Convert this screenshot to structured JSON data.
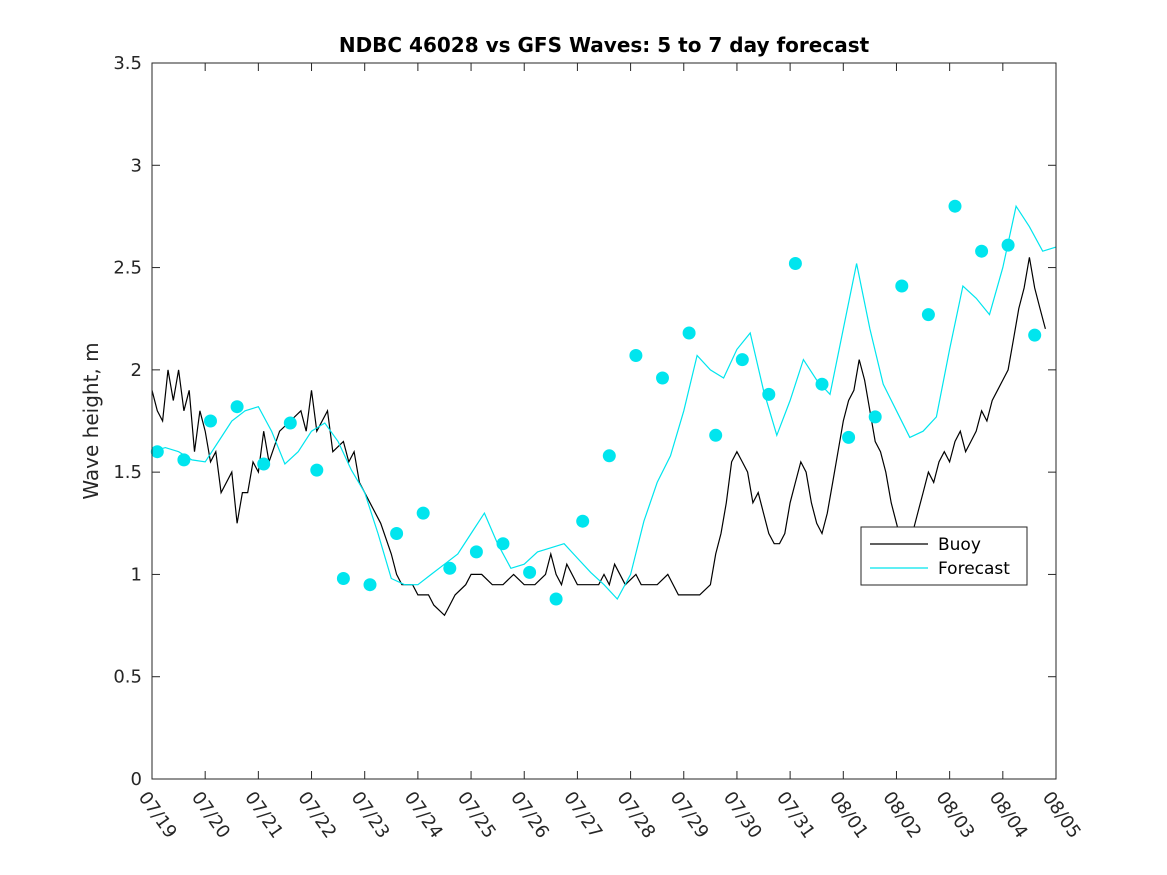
{
  "chart_data": {
    "type": "line",
    "title": "NDBC 46028 vs GFS Waves: 5 to 7 day forecast",
    "xlabel": "",
    "ylabel": "Wave height, m",
    "x_tick_labels": [
      "07/19",
      "07/20",
      "07/21",
      "07/22",
      "07/23",
      "07/24",
      "07/25",
      "07/26",
      "07/27",
      "07/28",
      "07/29",
      "07/30",
      "07/31",
      "08/01",
      "08/02",
      "08/03",
      "08/04",
      "08/05"
    ],
    "xlim_days": [
      0,
      17
    ],
    "ylim": [
      0,
      3.5
    ],
    "y_ticks": [
      0,
      0.5,
      1,
      1.5,
      2,
      2.5,
      3,
      3.5
    ],
    "y_tick_labels": [
      "0",
      "0.5",
      "1",
      "1.5",
      "2",
      "2.5",
      "3",
      "3.5"
    ],
    "grid": false,
    "legend": {
      "placement": "right",
      "entries": [
        {
          "label": "Buoy",
          "color": "#000000"
        },
        {
          "label": "Forecast",
          "color": "#00e5ee"
        }
      ]
    },
    "colors": {
      "buoy": "#000000",
      "forecast": "#00e5ee"
    },
    "series": [
      {
        "name": "Buoy",
        "color": "#000000",
        "points": [
          [
            0.0,
            1.9
          ],
          [
            0.1,
            1.8
          ],
          [
            0.2,
            1.75
          ],
          [
            0.3,
            2.0
          ],
          [
            0.4,
            1.85
          ],
          [
            0.5,
            2.0
          ],
          [
            0.6,
            1.8
          ],
          [
            0.7,
            1.9
          ],
          [
            0.8,
            1.6
          ],
          [
            0.9,
            1.8
          ],
          [
            1.0,
            1.7
          ],
          [
            1.1,
            1.55
          ],
          [
            1.2,
            1.6
          ],
          [
            1.3,
            1.4
          ],
          [
            1.5,
            1.5
          ],
          [
            1.6,
            1.25
          ],
          [
            1.7,
            1.4
          ],
          [
            1.8,
            1.4
          ],
          [
            1.9,
            1.55
          ],
          [
            2.0,
            1.5
          ],
          [
            2.1,
            1.7
          ],
          [
            2.2,
            1.55
          ],
          [
            2.4,
            1.7
          ],
          [
            2.6,
            1.75
          ],
          [
            2.8,
            1.8
          ],
          [
            2.9,
            1.7
          ],
          [
            3.0,
            1.9
          ],
          [
            3.1,
            1.7
          ],
          [
            3.3,
            1.8
          ],
          [
            3.4,
            1.6
          ],
          [
            3.6,
            1.65
          ],
          [
            3.7,
            1.55
          ],
          [
            3.8,
            1.6
          ],
          [
            3.9,
            1.45
          ],
          [
            4.1,
            1.35
          ],
          [
            4.3,
            1.25
          ],
          [
            4.5,
            1.1
          ],
          [
            4.6,
            1.0
          ],
          [
            4.7,
            0.95
          ],
          [
            4.9,
            0.95
          ],
          [
            5.0,
            0.9
          ],
          [
            5.2,
            0.9
          ],
          [
            5.3,
            0.85
          ],
          [
            5.5,
            0.8
          ],
          [
            5.6,
            0.85
          ],
          [
            5.7,
            0.9
          ],
          [
            5.9,
            0.95
          ],
          [
            6.0,
            1.0
          ],
          [
            6.2,
            1.0
          ],
          [
            6.4,
            0.95
          ],
          [
            6.6,
            0.95
          ],
          [
            6.8,
            1.0
          ],
          [
            7.0,
            0.95
          ],
          [
            7.2,
            0.95
          ],
          [
            7.4,
            1.0
          ],
          [
            7.5,
            1.1
          ],
          [
            7.6,
            1.0
          ],
          [
            7.7,
            0.95
          ],
          [
            7.8,
            1.05
          ],
          [
            8.0,
            0.95
          ],
          [
            8.2,
            0.95
          ],
          [
            8.4,
            0.95
          ],
          [
            8.5,
            1.0
          ],
          [
            8.6,
            0.95
          ],
          [
            8.7,
            1.05
          ],
          [
            8.9,
            0.95
          ],
          [
            9.1,
            1.0
          ],
          [
            9.2,
            0.95
          ],
          [
            9.4,
            0.95
          ],
          [
            9.5,
            0.95
          ],
          [
            9.7,
            1.0
          ],
          [
            9.9,
            0.9
          ],
          [
            10.1,
            0.9
          ],
          [
            10.3,
            0.9
          ],
          [
            10.5,
            0.95
          ],
          [
            10.6,
            1.1
          ],
          [
            10.7,
            1.2
          ],
          [
            10.8,
            1.35
          ],
          [
            10.9,
            1.55
          ],
          [
            11.0,
            1.6
          ],
          [
            11.1,
            1.55
          ],
          [
            11.2,
            1.5
          ],
          [
            11.3,
            1.35
          ],
          [
            11.4,
            1.4
          ],
          [
            11.5,
            1.3
          ],
          [
            11.6,
            1.2
          ],
          [
            11.7,
            1.15
          ],
          [
            11.8,
            1.15
          ],
          [
            11.9,
            1.2
          ],
          [
            12.0,
            1.35
          ],
          [
            12.1,
            1.45
          ],
          [
            12.2,
            1.55
          ],
          [
            12.3,
            1.5
          ],
          [
            12.4,
            1.35
          ],
          [
            12.5,
            1.25
          ],
          [
            12.6,
            1.2
          ],
          [
            12.7,
            1.3
          ],
          [
            12.8,
            1.45
          ],
          [
            12.9,
            1.6
          ],
          [
            13.0,
            1.75
          ],
          [
            13.1,
            1.85
          ],
          [
            13.2,
            1.9
          ],
          [
            13.3,
            2.05
          ],
          [
            13.4,
            1.95
          ],
          [
            13.5,
            1.8
          ],
          [
            13.6,
            1.65
          ],
          [
            13.7,
            1.6
          ],
          [
            13.8,
            1.5
          ],
          [
            13.9,
            1.35
          ],
          [
            14.0,
            1.25
          ],
          [
            14.1,
            1.15
          ],
          [
            14.2,
            1.1
          ],
          [
            14.3,
            1.2
          ],
          [
            14.4,
            1.3
          ],
          [
            14.5,
            1.4
          ],
          [
            14.6,
            1.5
          ],
          [
            14.7,
            1.45
          ],
          [
            14.8,
            1.55
          ],
          [
            14.9,
            1.6
          ],
          [
            15.0,
            1.55
          ],
          [
            15.1,
            1.65
          ],
          [
            15.2,
            1.7
          ],
          [
            15.3,
            1.6
          ],
          [
            15.4,
            1.65
          ],
          [
            15.5,
            1.7
          ],
          [
            15.6,
            1.8
          ],
          [
            15.7,
            1.75
          ],
          [
            15.8,
            1.85
          ],
          [
            15.9,
            1.9
          ],
          [
            16.0,
            1.95
          ],
          [
            16.1,
            2.0
          ],
          [
            16.2,
            2.15
          ],
          [
            16.3,
            2.3
          ],
          [
            16.4,
            2.4
          ],
          [
            16.5,
            2.55
          ],
          [
            16.6,
            2.4
          ],
          [
            16.7,
            2.3
          ],
          [
            16.8,
            2.2
          ]
        ]
      },
      {
        "name": "Forecast",
        "color": "#00e5ee",
        "points": [
          [
            0.0,
            1.6
          ],
          [
            0.25,
            1.62
          ],
          [
            0.5,
            1.6
          ],
          [
            0.75,
            1.56
          ],
          [
            1.0,
            1.55
          ],
          [
            1.25,
            1.65
          ],
          [
            1.5,
            1.75
          ],
          [
            1.75,
            1.8
          ],
          [
            2.0,
            1.82
          ],
          [
            2.25,
            1.7
          ],
          [
            2.5,
            1.54
          ],
          [
            2.75,
            1.6
          ],
          [
            3.0,
            1.7
          ],
          [
            3.25,
            1.74
          ],
          [
            3.5,
            1.65
          ],
          [
            3.75,
            1.51
          ],
          [
            4.0,
            1.4
          ],
          [
            4.25,
            1.2
          ],
          [
            4.5,
            0.98
          ],
          [
            4.75,
            0.95
          ],
          [
            5.0,
            0.95
          ],
          [
            5.25,
            1.0
          ],
          [
            5.5,
            1.05
          ],
          [
            5.75,
            1.1
          ],
          [
            6.0,
            1.2
          ],
          [
            6.25,
            1.3
          ],
          [
            6.5,
            1.15
          ],
          [
            6.75,
            1.03
          ],
          [
            7.0,
            1.05
          ],
          [
            7.25,
            1.11
          ],
          [
            7.5,
            1.13
          ],
          [
            7.75,
            1.15
          ],
          [
            8.0,
            1.08
          ],
          [
            8.25,
            1.01
          ],
          [
            8.5,
            0.95
          ],
          [
            8.75,
            0.88
          ],
          [
            9.0,
            1.0
          ],
          [
            9.25,
            1.26
          ],
          [
            9.5,
            1.45
          ],
          [
            9.75,
            1.58
          ],
          [
            10.0,
            1.8
          ],
          [
            10.25,
            2.07
          ],
          [
            10.5,
            2.0
          ],
          [
            10.75,
            1.96
          ],
          [
            11.0,
            2.1
          ],
          [
            11.25,
            2.18
          ],
          [
            11.5,
            1.9
          ],
          [
            11.75,
            1.68
          ],
          [
            12.0,
            1.85
          ],
          [
            12.25,
            2.05
          ],
          [
            12.5,
            1.95
          ],
          [
            12.75,
            1.88
          ],
          [
            13.0,
            2.2
          ],
          [
            13.25,
            2.52
          ],
          [
            13.5,
            2.2
          ],
          [
            13.75,
            1.93
          ],
          [
            14.0,
            1.8
          ],
          [
            14.25,
            1.67
          ],
          [
            14.5,
            1.7
          ],
          [
            14.75,
            1.77
          ],
          [
            15.0,
            2.1
          ],
          [
            15.25,
            2.41
          ],
          [
            15.5,
            2.35
          ],
          [
            15.75,
            2.27
          ],
          [
            16.0,
            2.5
          ],
          [
            16.25,
            2.8
          ],
          [
            16.5,
            2.7
          ],
          [
            16.75,
            2.58
          ],
          [
            17.0,
            2.6
          ]
        ]
      }
    ],
    "forecast_markers": [
      [
        0.1,
        1.6
      ],
      [
        0.6,
        1.56
      ],
      [
        1.1,
        1.75
      ],
      [
        1.6,
        1.82
      ],
      [
        2.1,
        1.54
      ],
      [
        2.6,
        1.74
      ],
      [
        3.1,
        1.51
      ],
      [
        3.6,
        0.98
      ],
      [
        4.1,
        0.95
      ],
      [
        4.6,
        1.2
      ],
      [
        5.1,
        1.3
      ],
      [
        5.6,
        1.03
      ],
      [
        6.1,
        1.11
      ],
      [
        6.6,
        1.15
      ],
      [
        7.1,
        1.01
      ],
      [
        7.6,
        0.88
      ],
      [
        8.1,
        1.26
      ],
      [
        8.6,
        1.58
      ],
      [
        9.1,
        2.07
      ],
      [
        9.6,
        1.96
      ],
      [
        10.1,
        2.18
      ],
      [
        10.6,
        1.68
      ],
      [
        11.1,
        2.05
      ],
      [
        11.6,
        1.88
      ],
      [
        12.1,
        2.52
      ],
      [
        12.6,
        1.93
      ],
      [
        13.1,
        1.67
      ],
      [
        13.6,
        1.77
      ],
      [
        14.1,
        2.41
      ],
      [
        14.6,
        2.27
      ],
      [
        15.1,
        2.8
      ],
      [
        15.6,
        2.58
      ],
      [
        16.1,
        2.61
      ],
      [
        16.6,
        2.17
      ]
    ]
  }
}
